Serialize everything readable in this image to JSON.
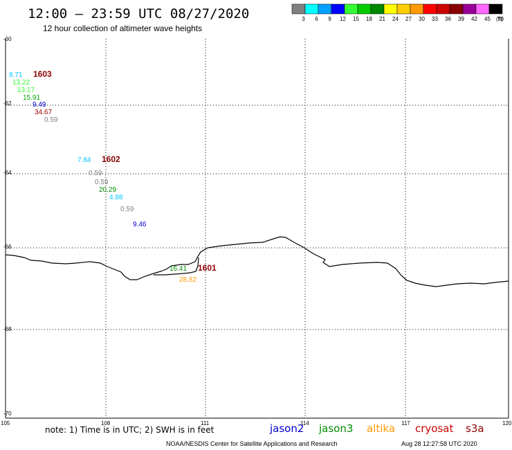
{
  "header": {
    "title": "12:00 – 23:59 UTC 08/27/2020",
    "subtitle": "12 hour collection of altimeter wave heights"
  },
  "legend": {
    "swatches": [
      {
        "label": "3",
        "color": "#808080"
      },
      {
        "label": "6",
        "color": "#00ffff"
      },
      {
        "label": "9",
        "color": "#00a0ff"
      },
      {
        "label": "12",
        "color": "#0000ff"
      },
      {
        "label": "15",
        "color": "#33ff33"
      },
      {
        "label": "18",
        "color": "#00cc00"
      },
      {
        "label": "21",
        "color": "#008800"
      },
      {
        "label": "24",
        "color": "#ffff00"
      },
      {
        "label": "27",
        "color": "#ffcc00"
      },
      {
        "label": "30",
        "color": "#ff9900"
      },
      {
        "label": "33",
        "color": "#ff0000"
      },
      {
        "label": "36",
        "color": "#cc0000"
      },
      {
        "label": "39",
        "color": "#880000"
      },
      {
        "label": "42",
        "color": "#990099"
      },
      {
        "label": "45",
        "color": "#ff66ff"
      },
      {
        "label": "70",
        "color": "#000000"
      }
    ],
    "unit": "(ft)"
  },
  "axes": {
    "lat_ticks": [
      "-60",
      "-62",
      "-64",
      "-66",
      "-68",
      "-70"
    ],
    "lon_ticks": [
      "105",
      "108",
      "111",
      "114",
      "117",
      "120"
    ]
  },
  "labels": [
    {
      "text": "8.71",
      "color": "#00c8ff"
    },
    {
      "text": "1603",
      "color": "#8b0000",
      "kind": "time"
    },
    {
      "text": "13.22",
      "color": "#33ff33"
    },
    {
      "text": "13.17",
      "color": "#33ff33"
    },
    {
      "text": "15.91",
      "color": "#00aa00"
    },
    {
      "text": "9.49",
      "color": "#0000cc"
    },
    {
      "text": "34.67",
      "color": "#a00000"
    },
    {
      "text": "0.59",
      "color": "#808080"
    },
    {
      "text": "7.84",
      "color": "#00c8ff"
    },
    {
      "text": "1602",
      "color": "#8b0000",
      "kind": "time"
    },
    {
      "text": "0.59",
      "color": "#808080"
    },
    {
      "text": "0.59",
      "color": "#808080"
    },
    {
      "text": "20.29",
      "color": "#008800"
    },
    {
      "text": "4.88",
      "color": "#00c8ff"
    },
    {
      "text": "0.59",
      "color": "#808080"
    },
    {
      "text": "9.46",
      "color": "#0000cc"
    },
    {
      "text": "16.41",
      "color": "#008800"
    },
    {
      "text": "1601",
      "color": "#8b0000",
      "kind": "time"
    },
    {
      "text": "28.82",
      "color": "#ff9900"
    }
  ],
  "footer": {
    "note": "note: 1) Time is in UTC; 2) SWH is in feet",
    "satellites": [
      {
        "name": "jason2",
        "color": "#0000cc"
      },
      {
        "name": "jason3",
        "color": "#008800"
      },
      {
        "name": "altika",
        "color": "#ff9900"
      },
      {
        "name": "cryosat",
        "color": "#cc0000"
      },
      {
        "name": "s3a",
        "color": "#8b0000"
      }
    ],
    "credit": "NOAA/NESDIS Center for Satellite Applications and Research",
    "timestamp": "Aug 28 12:27:58 UTC 2020"
  }
}
